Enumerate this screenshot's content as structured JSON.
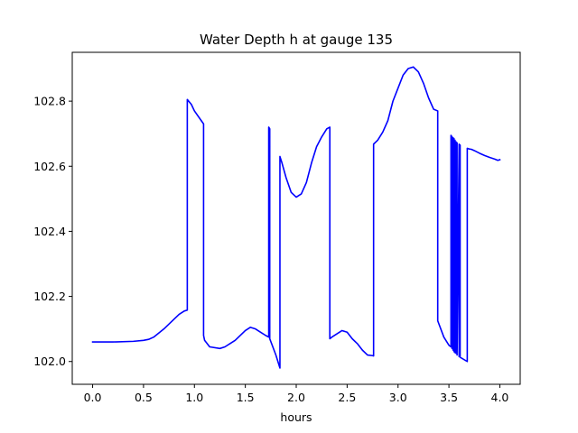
{
  "chart_data": {
    "type": "line",
    "title": "Water Depth h at gauge 135",
    "xlabel": "hours",
    "ylabel": "",
    "xlim": [
      -0.2,
      4.2
    ],
    "ylim": [
      101.93,
      102.95
    ],
    "grid": false,
    "xticks": [
      0.0,
      0.5,
      1.0,
      1.5,
      2.0,
      2.5,
      3.0,
      3.5,
      4.0
    ],
    "xtick_labels": [
      "0.0",
      "0.5",
      "1.0",
      "1.5",
      "2.0",
      "2.5",
      "3.0",
      "3.5",
      "4.0"
    ],
    "yticks": [
      102.0,
      102.2,
      102.4,
      102.6,
      102.8
    ],
    "ytick_labels": [
      "102.0",
      "102.2",
      "102.4",
      "102.6",
      "102.8"
    ],
    "series": [
      {
        "color": "#0000ff",
        "x": [
          0.0,
          0.2,
          0.4,
          0.5,
          0.55,
          0.6,
          0.7,
          0.8,
          0.85,
          0.9,
          0.93,
          0.93,
          0.97,
          1.0,
          1.09,
          1.09,
          1.1,
          1.15,
          1.25,
          1.3,
          1.4,
          1.5,
          1.55,
          1.6,
          1.65,
          1.7,
          1.73,
          1.73,
          1.74,
          1.74,
          1.8,
          1.84,
          1.84,
          1.86,
          1.9,
          1.95,
          2.0,
          2.05,
          2.1,
          2.15,
          2.2,
          2.25,
          2.3,
          2.33,
          2.33,
          2.35,
          2.4,
          2.45,
          2.5,
          2.55,
          2.6,
          2.65,
          2.7,
          2.75,
          2.76,
          2.76,
          2.8,
          2.85,
          2.9,
          2.95,
          3.0,
          3.05,
          3.1,
          3.15,
          3.2,
          3.25,
          3.3,
          3.35,
          3.39,
          3.39,
          3.45,
          3.5,
          3.52,
          3.52,
          3.53,
          3.53,
          3.54,
          3.54,
          3.55,
          3.55,
          3.56,
          3.56,
          3.57,
          3.57,
          3.58,
          3.58,
          3.6,
          3.6,
          3.61,
          3.61,
          3.68,
          3.68,
          3.7,
          3.72,
          3.75,
          3.8,
          3.85,
          3.9,
          3.95,
          3.98,
          4.0
        ],
        "y": [
          102.06,
          102.06,
          102.062,
          102.065,
          102.068,
          102.075,
          102.1,
          102.13,
          102.145,
          102.155,
          102.158,
          102.805,
          102.79,
          102.77,
          102.73,
          102.08,
          102.065,
          102.045,
          102.04,
          102.045,
          102.065,
          102.095,
          102.105,
          102.1,
          102.09,
          102.08,
          102.075,
          102.72,
          102.715,
          102.07,
          102.02,
          101.98,
          102.63,
          102.61,
          102.565,
          102.52,
          102.505,
          102.515,
          102.55,
          102.61,
          102.66,
          102.69,
          102.715,
          102.72,
          102.07,
          102.075,
          102.085,
          102.095,
          102.09,
          102.07,
          102.055,
          102.035,
          102.02,
          102.018,
          102.017,
          102.668,
          102.68,
          102.705,
          102.74,
          102.8,
          102.84,
          102.88,
          102.9,
          102.905,
          102.89,
          102.855,
          102.81,
          102.775,
          102.77,
          102.125,
          102.075,
          102.05,
          102.045,
          102.695,
          102.69,
          102.04,
          102.688,
          102.035,
          102.685,
          102.03,
          102.68,
          102.027,
          102.675,
          102.025,
          102.672,
          102.02,
          102.668,
          102.015,
          102.665,
          102.013,
          102.0,
          102.655,
          102.653,
          102.652,
          102.648,
          102.64,
          102.633,
          102.627,
          102.622,
          102.618,
          102.62
        ]
      }
    ]
  }
}
